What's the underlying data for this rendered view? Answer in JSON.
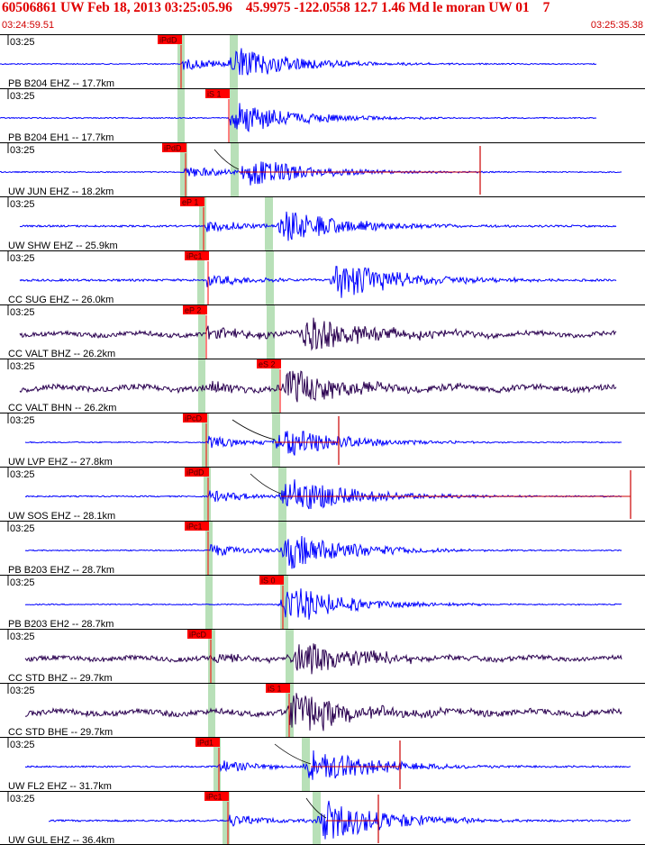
{
  "header": {
    "title": "60506861 UW Feb 18, 2013 03:25:05.96    45.9975 -122.0558 12.7 1.46 Md le moran UW 01    7",
    "start_time": "03:24:59.51",
    "end_time": "03:25:35.38"
  },
  "colors": {
    "background": "#ffffff",
    "frame": "#000000",
    "header_text": "#e00000",
    "pick_box": "#ff0000",
    "shade": "#b8e0b8",
    "trace_blue": "#0000ff",
    "trace_dark": "#2a0050",
    "synthetic": "#cc0000"
  },
  "panel_time_label": "03:25",
  "panels": [
    {
      "label": "PB B204 EHZ -- 17.7km",
      "pick": "iPdD",
      "color_key": "trace_blue"
    },
    {
      "label": "PB B204 EH1 -- 17.7km",
      "pick": "iS 1",
      "color_key": "trace_blue"
    },
    {
      "label": "UW JUN EHZ -- 18.2km",
      "pick": "iPdD",
      "color_key": "trace_blue"
    },
    {
      "label": "UW SHW EHZ -- 25.9km",
      "pick": "eP 1",
      "color_key": "trace_blue"
    },
    {
      "label": "CC SUG EHZ -- 26.0km",
      "pick": "iPc1",
      "color_key": "trace_blue"
    },
    {
      "label": "CC VALT BHZ -- 26.2km",
      "pick": "eP 2",
      "color_key": "trace_dark"
    },
    {
      "label": "CC VALT BHN -- 26.2km",
      "pick": "eS 2",
      "color_key": "trace_dark"
    },
    {
      "label": "UW LVP EHZ -- 27.8km",
      "pick": "iPcD",
      "color_key": "trace_blue"
    },
    {
      "label": "UW SOS EHZ -- 28.1km",
      "pick": "iPdD",
      "color_key": "trace_blue"
    },
    {
      "label": "PB B203 EHZ -- 28.7km",
      "pick": "iPc1",
      "color_key": "trace_blue"
    },
    {
      "label": "PB B203 EH2 -- 28.7km",
      "pick": "iS 0",
      "color_key": "trace_blue"
    },
    {
      "label": "CC STD BHZ -- 29.7km",
      "pick": "iPcD",
      "color_key": "trace_dark"
    },
    {
      "label": "CC STD BHE -- 29.7km",
      "pick": "iS 1",
      "color_key": "trace_dark"
    },
    {
      "label": "UW FL2 EHZ -- 31.7km",
      "pick": "iPd1",
      "color_key": "trace_blue"
    },
    {
      "label": "UW GUL EHZ -- 36.4km",
      "pick": "iPc1",
      "color_key": "trace_blue"
    }
  ]
}
